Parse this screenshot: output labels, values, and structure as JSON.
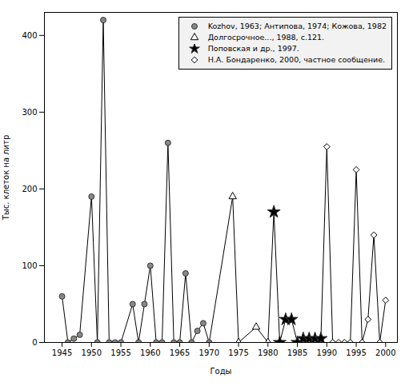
{
  "chart_data": {
    "type": "line",
    "x_label": "Годы",
    "y_label": "Тыс. клеток на литр",
    "color": "black",
    "line_style": "solid",
    "series": [
      {
        "name": "Kozhov, 1963; Антипова, 1974; Кожова, 1982",
        "x": [
          1945,
          1946,
          1947,
          1948,
          1950,
          1951,
          1952,
          1953,
          1954,
          1955,
          1957,
          1958,
          1959,
          1960,
          1961,
          1962,
          1963,
          1964,
          1965,
          1966,
          1967,
          1968,
          1969,
          1970
        ],
        "values": [
          60,
          0,
          5,
          10,
          190,
          0,
          420,
          0,
          0,
          0,
          50,
          0,
          50,
          100,
          0,
          0,
          260,
          0,
          0,
          90,
          0,
          15,
          25,
          0
        ],
        "marker": "circle",
        "color": "#888888"
      },
      {
        "name": "Долгосрочное..., 1988, с.121.",
        "x": [
          1974,
          1975,
          1978,
          1980
        ],
        "values": [
          190,
          0,
          20,
          0
        ],
        "marker": "triangle-open",
        "color": "black"
      },
      {
        "name": "Поповская и др., 1997.",
        "x": [
          1981,
          1982,
          1983,
          1984,
          1985,
          1986,
          1987,
          1988,
          1989
        ],
        "values": [
          170,
          0,
          30,
          30,
          0,
          5,
          5,
          5,
          5
        ],
        "marker": "star",
        "color": "black"
      },
      {
        "name": "Н.А. Бондаренко, 2000, частное сообщение.",
        "x": [
          1990,
          1991,
          1992,
          1993,
          1994,
          1995,
          1996,
          1997,
          1998,
          1999,
          2000
        ],
        "values": [
          255,
          0,
          0,
          0,
          0,
          225,
          0,
          30,
          140,
          0,
          55
        ],
        "marker": "diamond-open",
        "color": "black"
      }
    ],
    "xlim": [
      1942,
      2002
    ],
    "ylim": [
      0,
      430
    ],
    "xticks": [
      1945,
      1950,
      1955,
      1960,
      1965,
      1970,
      1975,
      1980,
      1985,
      1990,
      1995,
      2000
    ],
    "yticks": [
      0,
      100,
      200,
      300,
      400
    ],
    "grid": false,
    "legend": "upper right"
  }
}
